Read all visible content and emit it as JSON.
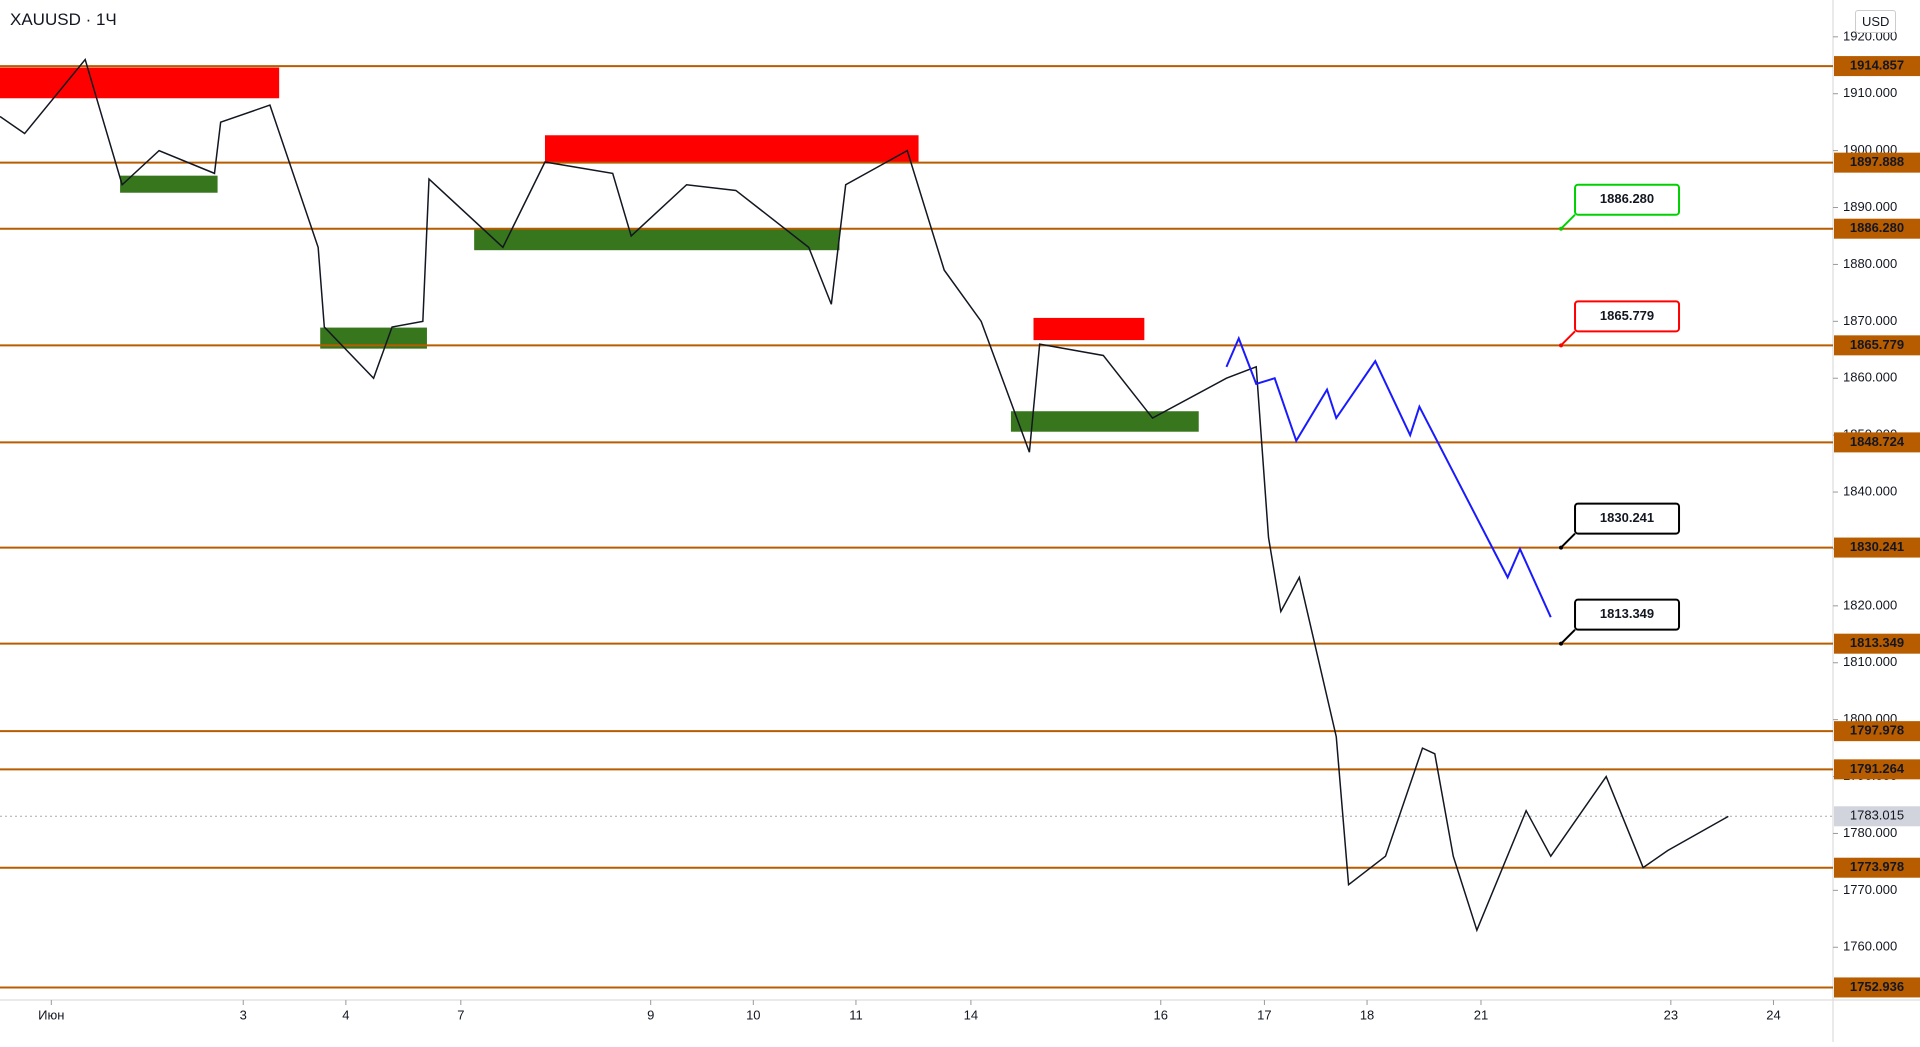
{
  "header": {
    "symbol": "XAUUSD",
    "interval": "1Ч",
    "currency": "USD"
  },
  "chart_data": {
    "type": "line",
    "xlim": [
      -0.5,
      17.36
    ],
    "ylim": [
      1750.73,
      1926.47
    ],
    "xticks": [
      {
        "value": 0,
        "label": "Июн"
      },
      {
        "value": 1.87,
        "label": "3"
      },
      {
        "value": 2.87,
        "label": "4"
      },
      {
        "value": 3.99,
        "label": "7"
      },
      {
        "value": 5.84,
        "label": "9"
      },
      {
        "value": 6.84,
        "label": "10"
      },
      {
        "value": 7.84,
        "label": "11"
      },
      {
        "value": 8.96,
        "label": "14"
      },
      {
        "value": 10.81,
        "label": "16"
      },
      {
        "value": 11.82,
        "label": "17"
      },
      {
        "value": 12.82,
        "label": "18"
      },
      {
        "value": 13.93,
        "label": "21"
      },
      {
        "value": 15.78,
        "label": "23"
      },
      {
        "value": 16.78,
        "label": "24"
      }
    ],
    "yticks": [
      {
        "value": 1760,
        "label": "1760.000"
      },
      {
        "value": 1770,
        "label": "1770.000"
      },
      {
        "value": 1780,
        "label": "1780.000"
      },
      {
        "value": 1790,
        "label": "1790.000"
      },
      {
        "value": 1800,
        "label": "1800.000"
      },
      {
        "value": 1810,
        "label": "1810.000"
      },
      {
        "value": 1820,
        "label": "1820.000"
      },
      {
        "value": 1830,
        "label": "1830.000"
      },
      {
        "value": 1840,
        "label": "1840.000"
      },
      {
        "value": 1850,
        "label": "1850.000"
      },
      {
        "value": 1860,
        "label": "1860.000"
      },
      {
        "value": 1870,
        "label": "1870.000"
      },
      {
        "value": 1880,
        "label": "1880.000"
      },
      {
        "value": 1890,
        "label": "1890.000"
      },
      {
        "value": 1900,
        "label": "1900.000"
      },
      {
        "value": 1910,
        "label": "1910.000"
      },
      {
        "value": 1920,
        "label": "1920.000"
      }
    ],
    "series": [
      {
        "name": "price",
        "color": "#131722",
        "x": [
          -0.5,
          -0.26,
          0.33,
          0.69,
          1.05,
          1.59,
          1.65,
          2.13,
          2.6,
          2.66,
          3.14,
          3.32,
          3.62,
          3.68,
          4.4,
          4.81,
          5.47,
          5.65,
          6.19,
          6.67,
          7.38,
          7.6,
          7.74,
          8.34,
          8.7,
          9.06,
          9.53,
          9.63,
          10.25,
          10.73,
          11.45,
          11.74,
          11.86,
          11.98,
          12.16,
          12.52,
          12.64,
          13.0,
          13.36,
          13.48,
          13.66,
          13.89,
          14.37,
          14.61,
          15.15,
          15.51,
          15.75,
          16.34
        ],
        "values": [
          1906,
          1903,
          1916,
          1894,
          1900,
          1896,
          1905,
          1908,
          1883,
          1869,
          1860,
          1869,
          1870,
          1895,
          1883,
          1898,
          1896,
          1885,
          1894,
          1893,
          1883,
          1873,
          1894,
          1900,
          1879,
          1870,
          1847,
          1866,
          1864,
          1853,
          1860,
          1862,
          1832,
          1819,
          1825,
          1797,
          1771,
          1776,
          1795,
          1794,
          1776,
          1763,
          1784,
          1776,
          1790,
          1774,
          1777,
          1783
        ]
      },
      {
        "name": "forecast",
        "color": "#1a1aff",
        "x": [
          11.45,
          11.57,
          11.74,
          11.92,
          12.13,
          12.43,
          12.52,
          12.9,
          13.24,
          13.33,
          14.19,
          14.31,
          14.61
        ],
        "values": [
          1862,
          1867,
          1859,
          1860,
          1849,
          1858,
          1853,
          1863,
          1850,
          1855,
          1825,
          1830,
          1818
        ]
      }
    ],
    "zones": [
      {
        "color": "#ff0000",
        "x": [
          -0.5,
          2.22
        ],
        "y": [
          1909.2,
          1914.6
        ]
      },
      {
        "color": "#38761d",
        "x": [
          0.67,
          1.62
        ],
        "y": [
          1892.6,
          1895.6
        ]
      },
      {
        "color": "#ff0000",
        "x": [
          4.81,
          8.45
        ],
        "y": [
          1898.0,
          1902.7
        ]
      },
      {
        "color": "#38761d",
        "x": [
          4.12,
          7.68
        ],
        "y": [
          1882.5,
          1886.4
        ]
      },
      {
        "color": "#38761d",
        "x": [
          2.62,
          3.66
        ],
        "y": [
          1865.2,
          1868.9
        ]
      },
      {
        "color": "#ff0000",
        "x": [
          9.57,
          10.65
        ],
        "y": [
          1866.7,
          1870.6
        ]
      },
      {
        "color": "#38761d",
        "x": [
          9.35,
          11.18
        ],
        "y": [
          1850.6,
          1854.2
        ]
      }
    ],
    "levels": {
      "color": "#b85c00",
      "values": [
        1914.857,
        1897.888,
        1886.28,
        1865.779,
        1848.724,
        1830.241,
        1813.349,
        1797.978,
        1791.264,
        1773.978,
        1752.936
      ],
      "value_labels": [
        "1914.857",
        "1897.888",
        "1886.280",
        "1865.779",
        "1848.724",
        "1830.241",
        "1813.349",
        "1797.978",
        "1791.264",
        "1773.978",
        "1752.936"
      ]
    },
    "targets": {
      "x": 14.71,
      "values": [
        1886.28,
        1865.779,
        1830.241,
        1813.349
      ],
      "value_labels": [
        "1886.280",
        "1865.779",
        "1830.241",
        "1813.349"
      ],
      "colors": [
        "#00d000",
        "#ff0000",
        "#000000",
        "#000000"
      ]
    },
    "last_price": {
      "value": 1783.015,
      "label": "1783.015"
    }
  }
}
